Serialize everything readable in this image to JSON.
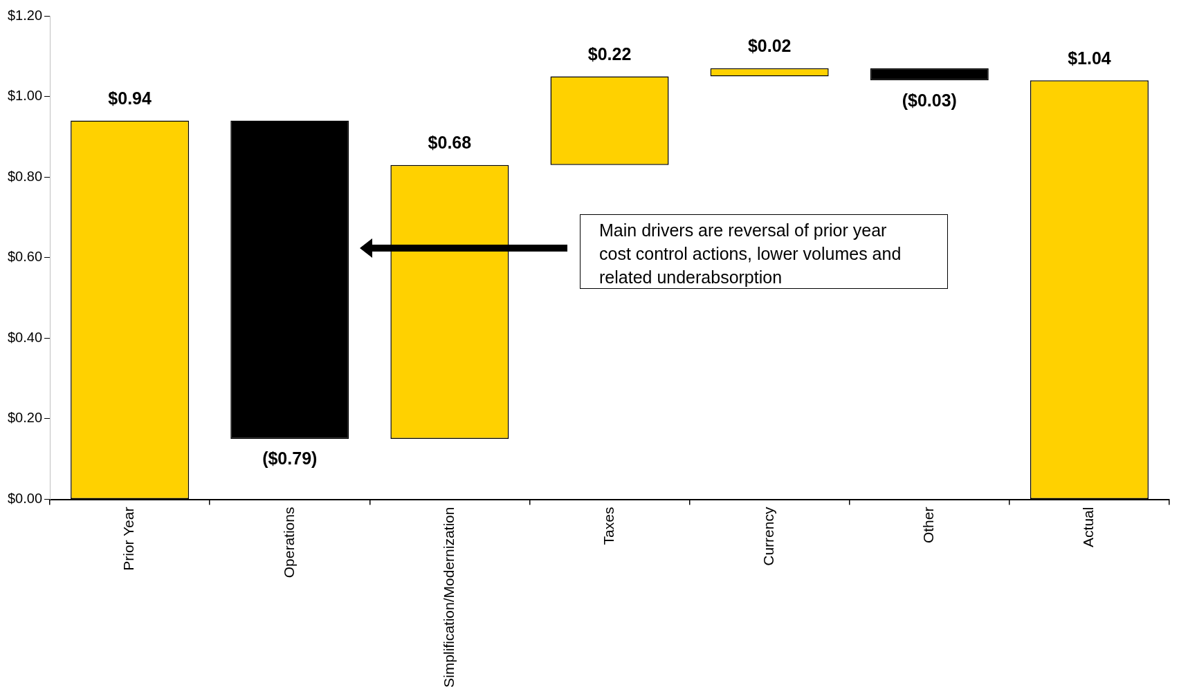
{
  "chart_data": {
    "type": "bar",
    "categories": [
      "Prior Year",
      "Operations",
      "Simplification/Modernization",
      "Taxes",
      "Currency",
      "Other",
      "Actual"
    ],
    "base": [
      0,
      0.94,
      0.15,
      0.83,
      1.05,
      1.07,
      0
    ],
    "values": [
      0.94,
      -0.79,
      0.68,
      0.22,
      0.02,
      -0.03,
      1.04
    ],
    "colors": [
      "#ffd100",
      "#000000",
      "#ffd100",
      "#ffd100",
      "#ffd100",
      "#000000",
      "#ffd100"
    ],
    "value_labels": [
      "$0.94",
      "($0.79)",
      "$0.68",
      "$0.22",
      "$0.02",
      "($0.03)",
      "$1.04"
    ],
    "ylim": [
      0,
      1.2
    ],
    "yticks": [
      {
        "value": 0,
        "label": "$0.00"
      },
      {
        "value": 0.2,
        "label": "$0.20"
      },
      {
        "value": 0.4,
        "label": "$0.40"
      },
      {
        "value": 0.6,
        "label": "$0.60"
      },
      {
        "value": 0.8,
        "label": "$0.80"
      },
      {
        "value": 1.0,
        "label": "$1.00"
      },
      {
        "value": 1.2,
        "label": "$1.20"
      }
    ],
    "grid": false,
    "legend": false,
    "annotations": [
      "Main drivers are reversal of prior year cost control actions, lower volumes and related underabsorption"
    ]
  }
}
